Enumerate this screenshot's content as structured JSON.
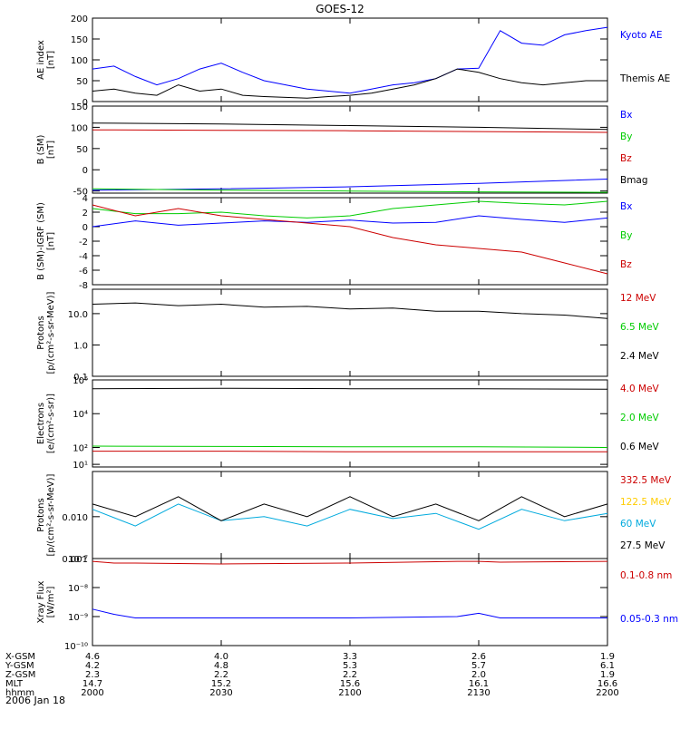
{
  "title": "GOES-12",
  "date": "2006 Jan 18",
  "colors": {
    "black": "#000000",
    "blue": "#0000ff",
    "green": "#00cc00",
    "red": "#cc0000",
    "yellow": "#ffcc00",
    "cyan": "#00aadd"
  },
  "chart_data": [
    {
      "type": "line",
      "ylabel": "AE index\n[nT]",
      "ylim": [
        0,
        200
      ],
      "scale": "linear",
      "yticks": [
        0,
        50,
        100,
        150,
        200
      ],
      "yticklabels": [
        "0",
        "50",
        "100",
        "150",
        "200"
      ],
      "x": [
        2000,
        2005,
        2010,
        2015,
        2020,
        2025,
        2030,
        2035,
        2040,
        2045,
        2050,
        2055,
        2100,
        2105,
        2110,
        2115,
        2120,
        2125,
        2130,
        2135,
        2140,
        2145,
        2150,
        2155,
        2200
      ],
      "series": [
        {
          "name": "Kyoto AE",
          "color": "blue",
          "values": [
            78,
            85,
            60,
            40,
            55,
            78,
            92,
            70,
            50,
            40,
            30,
            25,
            20,
            30,
            40,
            45,
            55,
            78,
            80,
            170,
            140,
            135,
            160,
            170,
            178
          ]
        },
        {
          "name": "Themis AE",
          "color": "black",
          "values": [
            25,
            30,
            20,
            15,
            40,
            25,
            30,
            15,
            12,
            10,
            8,
            12,
            15,
            20,
            30,
            40,
            55,
            78,
            70,
            55,
            45,
            40,
            45,
            50,
            50
          ]
        }
      ]
    },
    {
      "type": "line",
      "ylabel": "B (SM)\n[nT]",
      "ylim": [
        -55,
        150
      ],
      "scale": "linear",
      "yticks": [
        -50,
        0,
        50,
        100,
        150
      ],
      "yticklabels": [
        "-50",
        "0",
        "50",
        "100",
        "150"
      ],
      "x": [
        2000,
        2030,
        2100,
        2130,
        2200
      ],
      "series": [
        {
          "name": "Bx",
          "color": "blue",
          "values": [
            -48,
            -45,
            -40,
            -32,
            -22
          ]
        },
        {
          "name": "By",
          "color": "green",
          "values": [
            -45,
            -48,
            -50,
            -52,
            -53
          ]
        },
        {
          "name": "Bz",
          "color": "red",
          "values": [
            94,
            93,
            92,
            90,
            88
          ]
        },
        {
          "name": "Bmag",
          "color": "black",
          "values": [
            110,
            108,
            104,
            100,
            95
          ]
        }
      ]
    },
    {
      "type": "line",
      "ylabel": "B (SM)-IGRF (SM)\n[nT]",
      "ylim": [
        -8,
        4
      ],
      "scale": "linear",
      "yticks": [
        -8,
        -6,
        -4,
        -2,
        0,
        2,
        4
      ],
      "yticklabels": [
        "-8",
        "-6",
        "-4",
        "-2",
        "0",
        "2",
        "4"
      ],
      "x": [
        2000,
        2010,
        2020,
        2030,
        2040,
        2050,
        2100,
        2110,
        2120,
        2130,
        2140,
        2150,
        2200
      ],
      "series": [
        {
          "name": "Bx",
          "color": "blue",
          "values": [
            0,
            0.8,
            0.2,
            0.5,
            0.8,
            0.6,
            0.9,
            0.5,
            0.6,
            1.5,
            1.0,
            0.6,
            1.2
          ]
        },
        {
          "name": "By",
          "color": "green",
          "values": [
            2.5,
            1.8,
            1.8,
            2.0,
            1.5,
            1.2,
            1.5,
            2.5,
            3.0,
            3.5,
            3.2,
            3.0,
            3.5
          ]
        },
        {
          "name": "Bz",
          "color": "red",
          "values": [
            3.0,
            1.5,
            2.5,
            1.5,
            1.0,
            0.5,
            0.0,
            -1.5,
            -2.5,
            -3.0,
            -3.5,
            -5.0,
            -6.5
          ]
        }
      ]
    },
    {
      "type": "line",
      "ylabel": "Protons\n[p/(cm²-s-sr-MeV)]",
      "ylim": [
        0.1,
        60
      ],
      "scale": "log",
      "yticks": [
        0.1,
        1,
        10
      ],
      "yticklabels": [
        "0.1",
        "1.0",
        "10.0"
      ],
      "x": [
        2000,
        2010,
        2020,
        2030,
        2040,
        2050,
        2100,
        2110,
        2120,
        2130,
        2140,
        2150,
        2200
      ],
      "series": [
        {
          "name": "12 MeV",
          "color": "red",
          "values": [
            null,
            null,
            null,
            null,
            null,
            null,
            null,
            null,
            null,
            null,
            null,
            null,
            null
          ]
        },
        {
          "name": "6.5 MeV",
          "color": "green",
          "values": [
            null,
            null,
            null,
            null,
            null,
            null,
            null,
            null,
            null,
            null,
            null,
            null,
            null
          ]
        },
        {
          "name": "2.4 MeV",
          "color": "black",
          "values": [
            20,
            22,
            18,
            20,
            16,
            17,
            14,
            15,
            12,
            12,
            10,
            9,
            7
          ]
        }
      ]
    },
    {
      "type": "line",
      "ylabel": "Electrons\n[e/(cm²-s-sr)]",
      "ylim": [
        7,
        1000000
      ],
      "scale": "log",
      "yticks": [
        10,
        100,
        10000,
        1000000
      ],
      "yticklabels": [
        "10¹",
        "10²",
        "10⁴",
        "10⁶"
      ],
      "x": [
        2000,
        2030,
        2100,
        2130,
        2200
      ],
      "series": [
        {
          "name": "4.0 MeV",
          "color": "red",
          "values": [
            60,
            60,
            55,
            55,
            55
          ]
        },
        {
          "name": "2.0 MeV",
          "color": "green",
          "values": [
            120,
            115,
            110,
            110,
            100
          ]
        },
        {
          "name": "0.6 MeV",
          "color": "black",
          "values": [
            300000,
            320000,
            300000,
            300000,
            280000
          ]
        }
      ]
    },
    {
      "type": "line",
      "ylabel": "Protons\n[p/(cm²-s-sr-MeV)]",
      "ylim": [
        0.001,
        0.12
      ],
      "scale": "log",
      "yticks": [
        0.001,
        0.01
      ],
      "yticklabels": [
        "0.001",
        "0.010"
      ],
      "x": [
        2000,
        2010,
        2020,
        2030,
        2040,
        2050,
        2100,
        2110,
        2120,
        2130,
        2140,
        2150,
        2200
      ],
      "series": [
        {
          "name": "332.5 MeV",
          "color": "red",
          "values": [
            null,
            null,
            null,
            null,
            null,
            null,
            null,
            null,
            null,
            null,
            null,
            null,
            null
          ]
        },
        {
          "name": "122.5 MeV",
          "color": "yellow",
          "values": [
            null,
            null,
            null,
            null,
            null,
            null,
            null,
            null,
            null,
            null,
            null,
            null,
            null
          ]
        },
        {
          "name": "60 MeV",
          "color": "cyan",
          "values": [
            0.015,
            0.006,
            0.02,
            0.008,
            0.01,
            0.006,
            0.015,
            0.009,
            0.012,
            0.005,
            0.015,
            0.008,
            0.012
          ]
        },
        {
          "name": "27.5 MeV",
          "color": "black",
          "values": [
            0.02,
            0.01,
            0.03,
            0.008,
            0.02,
            0.01,
            0.03,
            0.01,
            0.02,
            0.008,
            0.03,
            0.01,
            0.02
          ]
        }
      ]
    },
    {
      "type": "line",
      "ylabel": "Xray Flux\n[W/m²]",
      "ylim": [
        1e-10,
        1e-07
      ],
      "scale": "log",
      "yticks": [
        1e-10,
        1e-09,
        1e-08,
        1e-07
      ],
      "yticklabels": [
        "10⁻¹⁰",
        "10⁻⁹",
        "10⁻⁸",
        "10⁻⁷"
      ],
      "x": [
        2000,
        2005,
        2010,
        2030,
        2100,
        2125,
        2130,
        2135,
        2200
      ],
      "series": [
        {
          "name": "0.1-0.8 nm",
          "color": "red",
          "values": [
            8e-08,
            7e-08,
            7e-08,
            6.5e-08,
            7e-08,
            8e-08,
            8e-08,
            7.5e-08,
            8e-08
          ]
        },
        {
          "name": "0.05-0.3 nm",
          "color": "blue",
          "values": [
            1.8e-09,
            1.2e-09,
            9e-10,
            9e-10,
            9e-10,
            1e-09,
            1.3e-09,
            9e-10,
            9e-10
          ]
        }
      ]
    }
  ],
  "ephemeris": {
    "rows": [
      {
        "label": "X-GSM",
        "values": [
          "4.6",
          "4.0",
          "3.3",
          "2.6",
          "1.9"
        ]
      },
      {
        "label": "Y-GSM",
        "values": [
          "4.2",
          "4.8",
          "5.3",
          "5.7",
          "6.1"
        ]
      },
      {
        "label": "Z-GSM",
        "values": [
          "2.3",
          "2.2",
          "2.2",
          "2.0",
          "1.9"
        ]
      },
      {
        "label": "MLT",
        "values": [
          "14.7",
          "15.2",
          "15.6",
          "16.1",
          "16.6"
        ]
      },
      {
        "label": "hhmm",
        "values": [
          "2000",
          "2030",
          "2100",
          "2130",
          "2200"
        ]
      }
    ]
  }
}
